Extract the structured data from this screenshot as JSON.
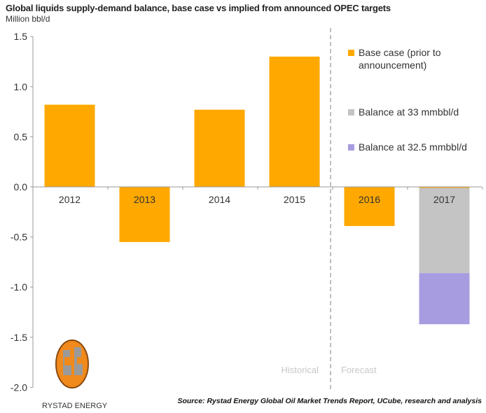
{
  "chart_data": {
    "type": "bar",
    "title": "Global liquids supply-demand balance, base case vs implied from announced OPEC targets",
    "ylabel": "Million bbl/d",
    "categories": [
      "2012",
      "2013",
      "2014",
      "2015",
      "2016",
      "2017"
    ],
    "series": [
      {
        "name": "Base case (prior to announcement)",
        "values": [
          0.82,
          -0.55,
          0.77,
          1.3,
          -0.39,
          -0.01
        ],
        "color": "#FFA800"
      },
      {
        "name": "Balance at 33 mmbbl/d",
        "values": [
          0,
          0,
          0,
          0,
          0,
          -0.85
        ],
        "color": "#C4C4C4"
      },
      {
        "name": "Balance at 32.5 mmbbl/d",
        "values": [
          0,
          0,
          0,
          0,
          0,
          -0.51
        ],
        "color": "#A89CE0"
      }
    ],
    "stacked": true,
    "ylim": [
      -2.0,
      1.5
    ],
    "yticks": [
      "1.5",
      "1.0",
      "0.5",
      "0.0",
      "-0.5",
      "-1.0",
      "-1.5",
      "-2.0"
    ],
    "grid": false,
    "legend_placement": "right",
    "annotations": {
      "historical": "Historical",
      "forecast": "Forecast"
    },
    "source": "Source: Rystad Energy Global Oil Market Trends Report, UCube, research and analysis"
  },
  "logo": {
    "text": "RYSTAD ENERGY"
  }
}
